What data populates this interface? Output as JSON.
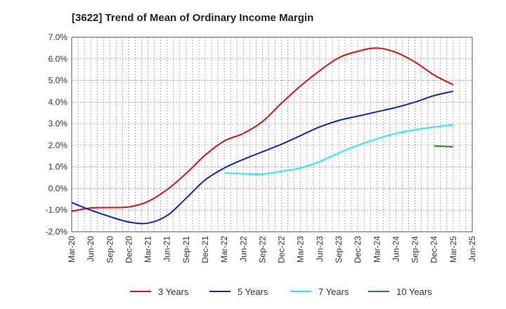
{
  "chart_data": {
    "type": "line",
    "title": "[3622]  Trend of Mean of Ordinary Income Margin",
    "xlabel": "",
    "ylabel": "",
    "ylim": [
      -2.0,
      7.0
    ],
    "yticks": [
      -2.0,
      -1.0,
      0.0,
      1.0,
      2.0,
      3.0,
      4.0,
      5.0,
      6.0,
      7.0
    ],
    "ytick_labels": [
      "-2.0%",
      "-1.0%",
      "0.0%",
      "1.0%",
      "2.0%",
      "3.0%",
      "4.0%",
      "5.0%",
      "6.0%",
      "7.0%"
    ],
    "xtick_labels": [
      "Mar-20",
      "Jun-20",
      "Sep-20",
      "Dec-20",
      "Mar-21",
      "Jun-21",
      "Sep-21",
      "Dec-21",
      "Mar-22",
      "Jun-22",
      "Sep-22",
      "Dec-22",
      "Mar-23",
      "Jun-23",
      "Sep-23",
      "Dec-23",
      "Mar-24",
      "Jun-24",
      "Sep-24",
      "Dec-24",
      "Mar-25",
      "Jun-25"
    ],
    "grid": true,
    "legend_position": "bottom",
    "series": [
      {
        "name": "3 Years",
        "color": "#dd1111",
        "x": [
          "Mar-20",
          "Jun-20",
          "Sep-20",
          "Dec-20",
          "Mar-21",
          "Jun-21",
          "Sep-21",
          "Dec-21",
          "Mar-22",
          "Jun-22",
          "Sep-22",
          "Dec-22",
          "Mar-23",
          "Jun-23",
          "Sep-23",
          "Dec-23",
          "Mar-24",
          "Jun-24",
          "Sep-24",
          "Dec-24",
          "Mar-25"
        ],
        "values": [
          -1.05,
          -0.9,
          -0.88,
          -0.85,
          -0.6,
          -0.05,
          0.7,
          1.55,
          2.2,
          2.55,
          3.1,
          3.95,
          4.75,
          5.45,
          6.05,
          6.35,
          6.5,
          6.3,
          5.85,
          5.25,
          4.8
        ]
      },
      {
        "name": "5 Years",
        "color": "#1122cc",
        "x": [
          "Mar-20",
          "Jun-20",
          "Sep-20",
          "Dec-20",
          "Mar-21",
          "Jun-21",
          "Sep-21",
          "Dec-21",
          "Mar-22",
          "Jun-22",
          "Sep-22",
          "Dec-22",
          "Mar-23",
          "Jun-23",
          "Sep-23",
          "Dec-23",
          "Mar-24",
          "Jun-24",
          "Sep-24",
          "Dec-24",
          "Mar-25"
        ],
        "values": [
          -0.65,
          -1.0,
          -1.3,
          -1.55,
          -1.6,
          -1.25,
          -0.45,
          0.4,
          0.95,
          1.35,
          1.7,
          2.05,
          2.45,
          2.85,
          3.15,
          3.35,
          3.55,
          3.75,
          4.0,
          4.3,
          4.5
        ]
      },
      {
        "name": "7 Years",
        "color": "#22eeee",
        "x": [
          "Mar-22",
          "Jun-22",
          "Sep-22",
          "Dec-22",
          "Mar-23",
          "Jun-23",
          "Sep-23",
          "Dec-23",
          "Mar-24",
          "Jun-24",
          "Sep-24",
          "Dec-24",
          "Mar-25"
        ],
        "values": [
          0.72,
          0.68,
          0.67,
          0.8,
          0.95,
          1.25,
          1.65,
          2.0,
          2.3,
          2.55,
          2.72,
          2.85,
          2.95
        ]
      },
      {
        "name": "10 Years",
        "color": "#228822",
        "x": [
          "Dec-24",
          "Mar-25"
        ],
        "values": [
          1.97,
          1.93
        ]
      }
    ]
  }
}
